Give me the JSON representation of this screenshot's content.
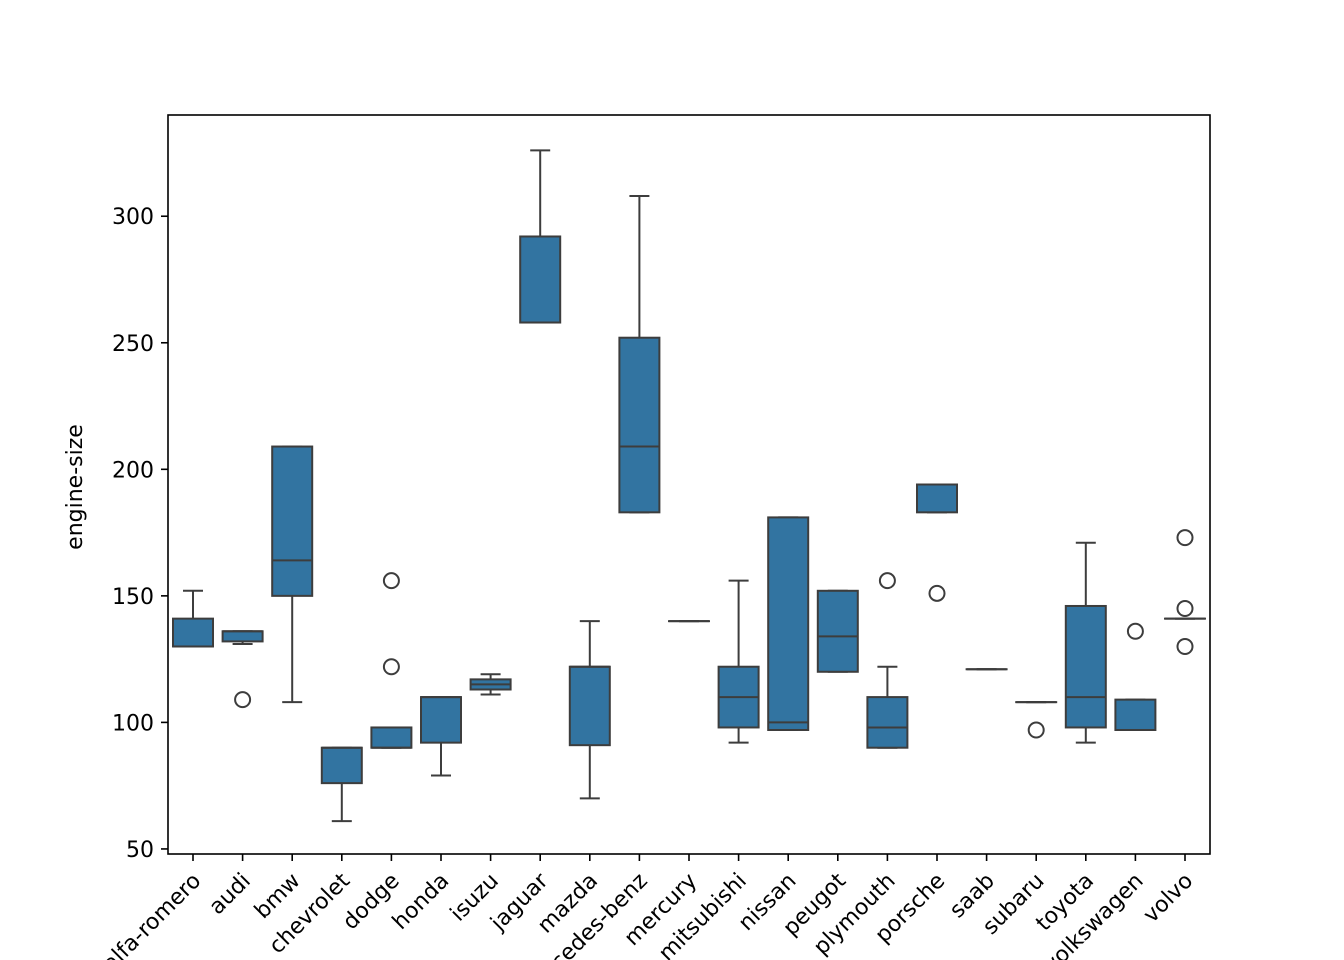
{
  "chart_data": {
    "type": "box",
    "xlabel": "",
    "ylabel": "engine-size",
    "ylim": [
      48,
      340
    ],
    "yticks": [
      50,
      100,
      150,
      200,
      250,
      300
    ],
    "grid": false,
    "box_color": "#3274a1",
    "edge_color": "#3d3d3d",
    "categories": [
      "alfa-romero",
      "audi",
      "bmw",
      "chevrolet",
      "dodge",
      "honda",
      "isuzu",
      "jaguar",
      "mazda",
      "mercedes-benz",
      "mercury",
      "mitsubishi",
      "nissan",
      "peugot",
      "plymouth",
      "porsche",
      "saab",
      "subaru",
      "toyota",
      "volkswagen",
      "volvo"
    ],
    "boxes": [
      {
        "q1": 130,
        "median": 130,
        "q3": 141,
        "whislo": 130,
        "whishi": 152,
        "fliers": []
      },
      {
        "q1": 132,
        "median": 136,
        "q3": 136,
        "whislo": 131,
        "whishi": 136,
        "fliers": [
          109
        ]
      },
      {
        "q1": 150,
        "median": 164,
        "q3": 209,
        "whislo": 108,
        "whishi": 209,
        "fliers": []
      },
      {
        "q1": 76,
        "median": 90,
        "q3": 90,
        "whislo": 61,
        "whishi": 90,
        "fliers": []
      },
      {
        "q1": 90,
        "median": 90,
        "q3": 98,
        "whislo": 90,
        "whishi": 98,
        "fliers": [
          122,
          156
        ]
      },
      {
        "q1": 92,
        "median": 110,
        "q3": 110,
        "whislo": 79,
        "whishi": 110,
        "fliers": []
      },
      {
        "q1": 113,
        "median": 115,
        "q3": 117,
        "whislo": 111,
        "whishi": 119,
        "fliers": []
      },
      {
        "q1": 258,
        "median": 258,
        "q3": 292,
        "whislo": 258,
        "whishi": 326,
        "fliers": []
      },
      {
        "q1": 91,
        "median": 122,
        "q3": 122,
        "whislo": 70,
        "whishi": 140,
        "fliers": []
      },
      {
        "q1": 183,
        "median": 209,
        "q3": 252,
        "whislo": 183,
        "whishi": 308,
        "fliers": []
      },
      {
        "q1": 140,
        "median": 140,
        "q3": 140,
        "whislo": 140,
        "whishi": 140,
        "fliers": []
      },
      {
        "q1": 98,
        "median": 110,
        "q3": 122,
        "whislo": 92,
        "whishi": 156,
        "fliers": []
      },
      {
        "q1": 97,
        "median": 100,
        "q3": 181,
        "whislo": 97,
        "whishi": 181,
        "fliers": []
      },
      {
        "q1": 120,
        "median": 134,
        "q3": 152,
        "whislo": 120,
        "whishi": 152,
        "fliers": []
      },
      {
        "q1": 90,
        "median": 98,
        "q3": 110,
        "whislo": 90,
        "whishi": 122,
        "fliers": [
          156
        ]
      },
      {
        "q1": 183,
        "median": 194,
        "q3": 194,
        "whislo": 183,
        "whishi": 194,
        "fliers": [
          151
        ]
      },
      {
        "q1": 121,
        "median": 121,
        "q3": 121,
        "whislo": 121,
        "whishi": 121,
        "fliers": []
      },
      {
        "q1": 108,
        "median": 108,
        "q3": 108,
        "whislo": 108,
        "whishi": 108,
        "fliers": [
          97
        ]
      },
      {
        "q1": 98,
        "median": 110,
        "q3": 146,
        "whislo": 92,
        "whishi": 171,
        "fliers": []
      },
      {
        "q1": 97,
        "median": 97,
        "q3": 109,
        "whislo": 97,
        "whishi": 109,
        "fliers": [
          136
        ]
      },
      {
        "q1": 141,
        "median": 141,
        "q3": 141,
        "whislo": 141,
        "whishi": 141,
        "fliers": [
          130,
          145,
          173
        ]
      }
    ]
  }
}
